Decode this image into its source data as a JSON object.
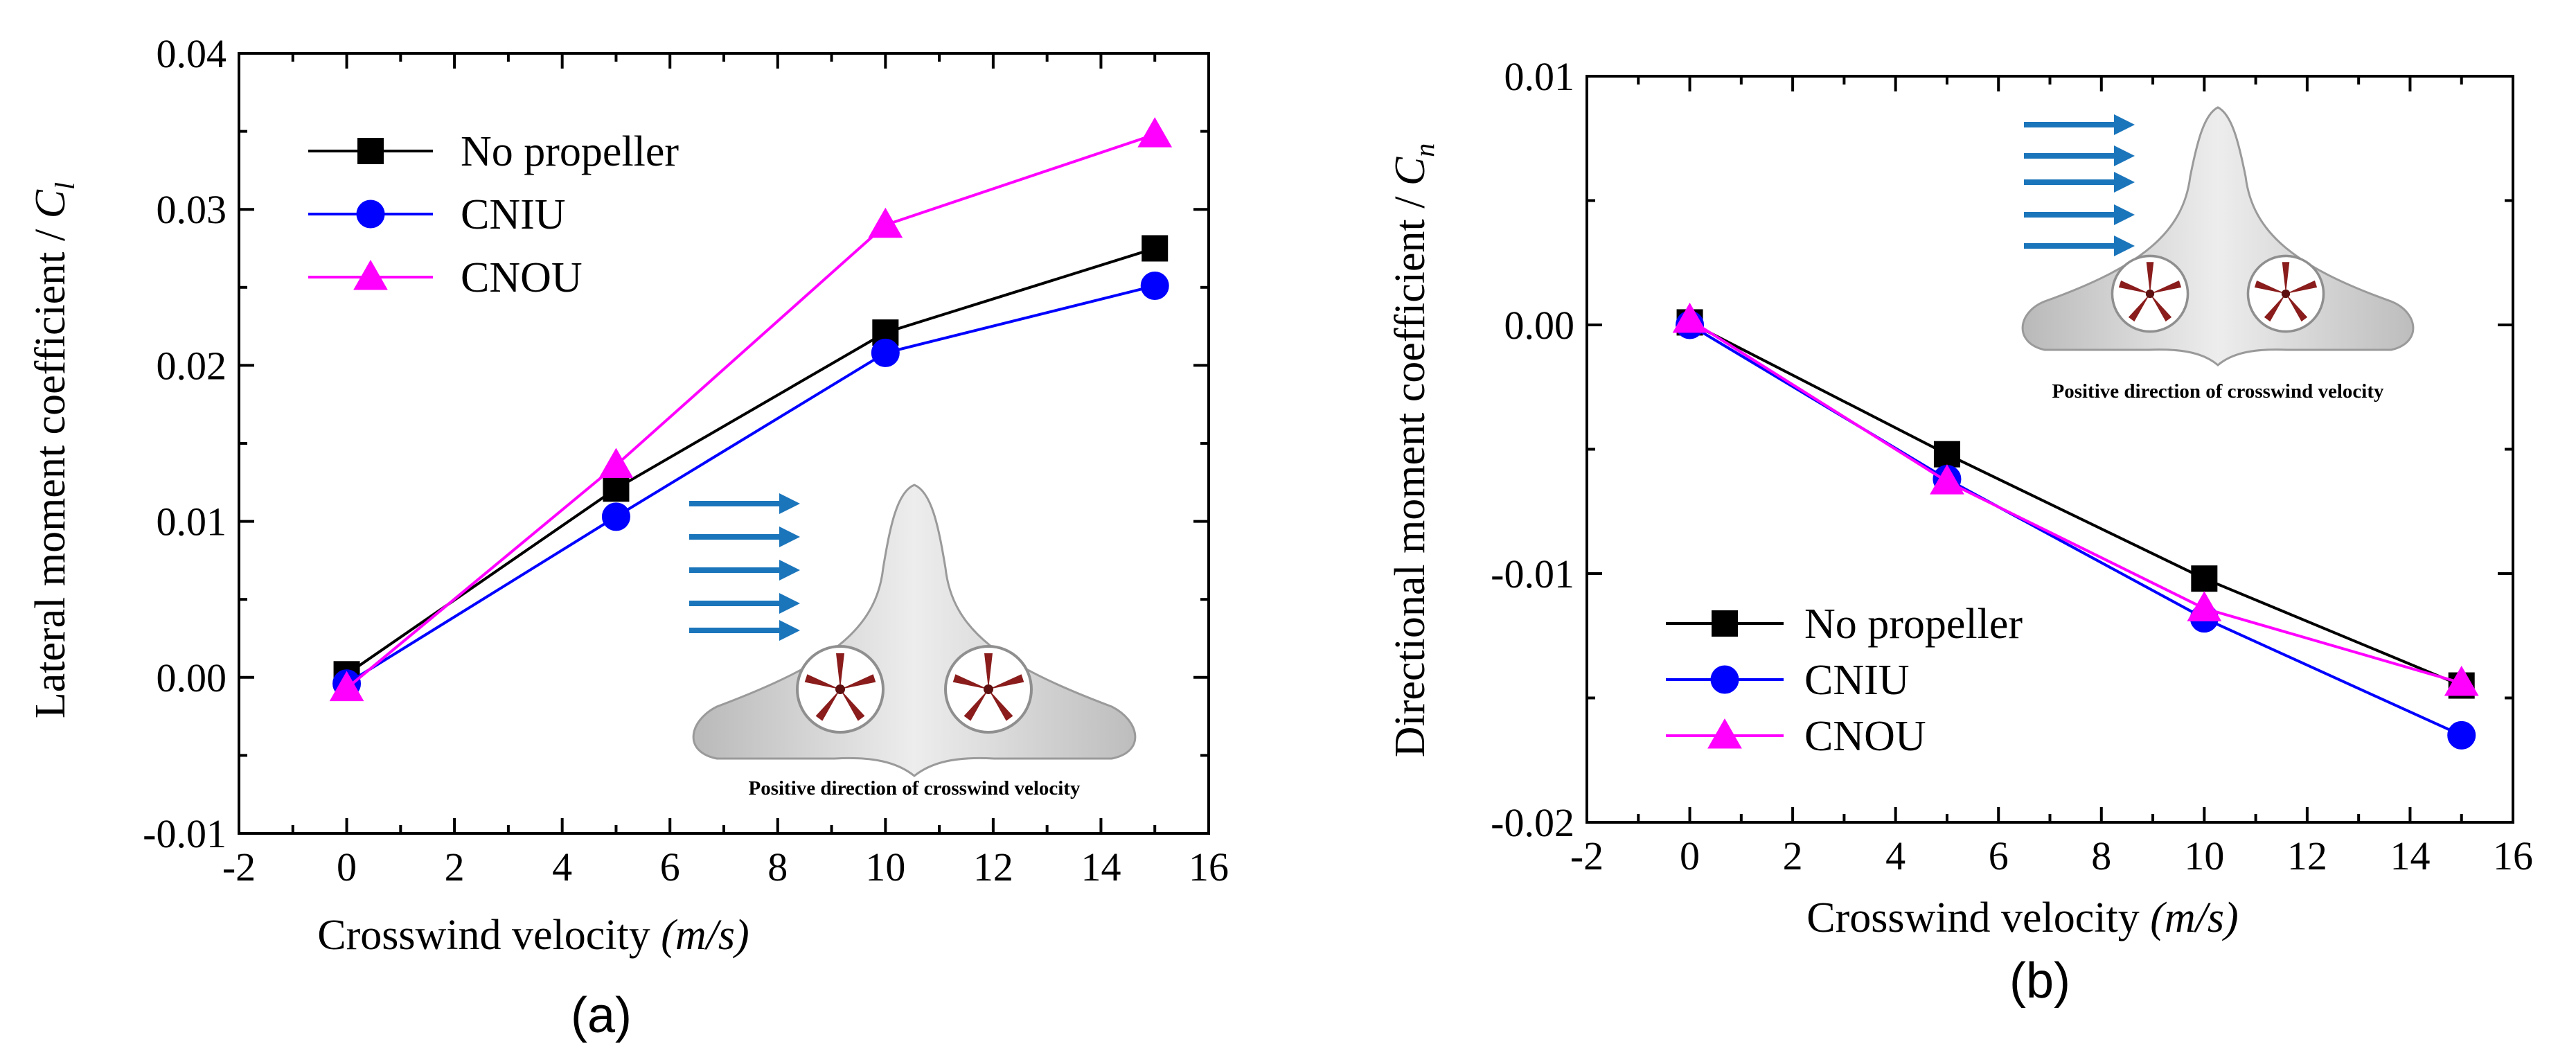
{
  "chart_data": [
    {
      "type": "line",
      "panel_label": "(a)",
      "title": "",
      "xlabel_main": "Crosswind velocity ",
      "xlabel_unit": "(m/s)",
      "ylabel_main": "Lateral moment coefficient / ",
      "ylabel_symbol": "C",
      "ylabel_sub": "l",
      "xlim": [
        -2,
        16
      ],
      "ylim": [
        -0.01,
        0.04
      ],
      "xticks": [
        -2,
        0,
        2,
        4,
        6,
        8,
        10,
        12,
        14,
        16
      ],
      "xtick_labels": [
        "-2",
        "0",
        "2",
        "4",
        "6",
        "8",
        "10",
        "12",
        "14",
        "16"
      ],
      "yticks": [
        -0.01,
        0.0,
        0.01,
        0.02,
        0.03,
        0.04
      ],
      "ytick_labels": [
        "-0.01",
        "0.00",
        "0.01",
        "0.02",
        "0.03",
        "0.04"
      ],
      "legend_position": "top-left",
      "inset_caption": "Positive direction of crosswind velocity",
      "series": [
        {
          "name": "No propeller",
          "color": "#000000",
          "marker": "square",
          "x": [
            0,
            5,
            10,
            15
          ],
          "values": [
            0.0002,
            0.0121,
            0.0221,
            0.0275
          ]
        },
        {
          "name": "CNIU",
          "color": "#0000ff",
          "marker": "circle",
          "x": [
            0,
            5,
            10,
            15
          ],
          "values": [
            -0.0004,
            0.0103,
            0.0208,
            0.0251
          ]
        },
        {
          "name": "CNOU",
          "color": "#ff00ff",
          "marker": "triangle",
          "x": [
            0,
            5,
            10,
            15
          ],
          "values": [
            -0.0007,
            0.0136,
            0.029,
            0.0348
          ]
        }
      ]
    },
    {
      "type": "line",
      "panel_label": "(b)",
      "title": "",
      "xlabel_main": "Crosswind velocity ",
      "xlabel_unit": "(m/s)",
      "ylabel_main": "Directional moment coefficient / ",
      "ylabel_symbol": "C",
      "ylabel_sub": "n",
      "xlim": [
        -2,
        16
      ],
      "ylim": [
        -0.02,
        0.01
      ],
      "xticks": [
        -2,
        0,
        2,
        4,
        6,
        8,
        10,
        12,
        14,
        16
      ],
      "xtick_labels": [
        "-2",
        "0",
        "2",
        "4",
        "6",
        "8",
        "10",
        "12",
        "14",
        "16"
      ],
      "yticks": [
        -0.02,
        -0.01,
        0.0,
        0.01
      ],
      "ytick_labels": [
        "-0.02",
        "-0.01",
        "0.00",
        "0.01"
      ],
      "legend_position": "bottom-left",
      "inset_caption": "Positive direction of crosswind velocity",
      "series": [
        {
          "name": "No propeller",
          "color": "#000000",
          "marker": "square",
          "x": [
            0,
            5,
            10,
            15
          ],
          "values": [
            0.0001,
            -0.0052,
            -0.0102,
            -0.0145
          ]
        },
        {
          "name": "CNIU",
          "color": "#0000ff",
          "marker": "circle",
          "x": [
            0,
            5,
            10,
            15
          ],
          "values": [
            0.0,
            -0.0062,
            -0.0118,
            -0.0165
          ]
        },
        {
          "name": "CNOU",
          "color": "#ff00ff",
          "marker": "triangle",
          "x": [
            0,
            5,
            10,
            15
          ],
          "values": [
            0.0002,
            -0.0063,
            -0.0114,
            -0.0144
          ]
        }
      ]
    }
  ]
}
